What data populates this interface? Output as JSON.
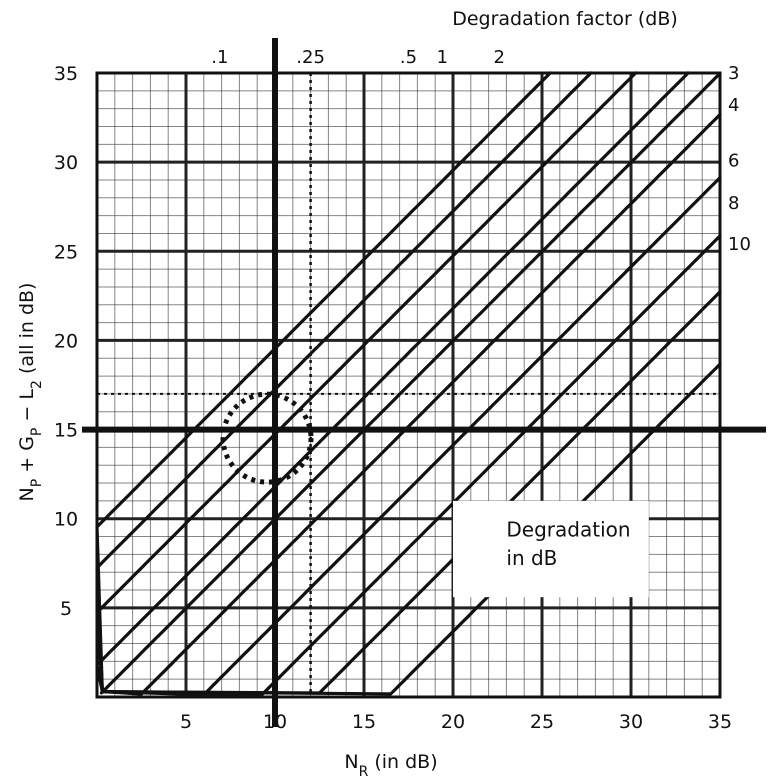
{
  "chart_data": {
    "type": "line",
    "top_title": "Degradation factor (dB)",
    "xlabel": {
      "main": "N",
      "sub": "R",
      "rest": " (in dB)"
    },
    "ylabel": [
      {
        "t": "N",
        "sub": false
      },
      {
        "t": "P",
        "sub": true
      },
      {
        "t": " + G",
        "sub": false
      },
      {
        "t": "P",
        "sub": true
      },
      {
        "t": " − L",
        "sub": false
      },
      {
        "t": "2",
        "sub": true
      },
      {
        "t": " (all in dB)",
        "sub": false
      }
    ],
    "xlim": [
      0,
      35
    ],
    "ylim": [
      0,
      35
    ],
    "x_ticks": [
      "5",
      "10",
      "15",
      "20",
      "25",
      "30",
      "35"
    ],
    "y_ticks": [
      "5",
      "10",
      "15",
      "20",
      "25",
      "30",
      "35"
    ],
    "grid": "major every 5 dB, minor every 1 dB",
    "degradation_curves_db": [
      0.1,
      0.25,
      0.5,
      1,
      2,
      3,
      4,
      6,
      8,
      10
    ],
    "top_curve_labels": [
      ".1",
      ".25",
      ".5",
      "1",
      "2"
    ],
    "right_curve_labels": [
      "3",
      "4",
      "6",
      "8",
      "10"
    ],
    "marker_lines": {
      "x": 10,
      "y": 15
    },
    "dotted_guides": {
      "x": 12,
      "y": 17
    },
    "highlight_circle": {
      "x": 10,
      "y": 14.8
    },
    "annotation_box": [
      "Degradation",
      "in dB"
    ]
  }
}
